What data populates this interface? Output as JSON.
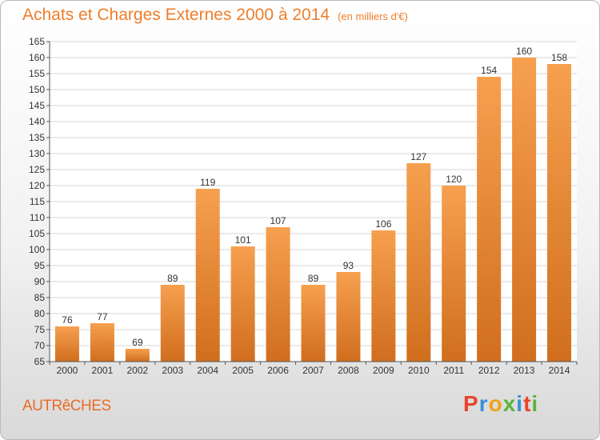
{
  "title": "Achats et Charges Externes 2000 à 2014",
  "unit": "(en milliers d'€)",
  "commune": "AUTRêCHES",
  "logo": {
    "letters": [
      "P",
      "r",
      "o",
      "x",
      "i",
      "t",
      "i"
    ],
    "colors": [
      "#e8442b",
      "#3a8fd8",
      "#f2a21c",
      "#5ab43c",
      "#3a8fd8",
      "#e8442b",
      "#5ab43c"
    ]
  },
  "colors": {
    "accent": "#ef7e2a",
    "bar_top": "#f6a04f",
    "bar_bottom": "#d06e1e",
    "grid": "#d7d7d7"
  },
  "chart_data": {
    "type": "bar",
    "categories": [
      "2000",
      "2001",
      "2002",
      "2003",
      "2004",
      "2005",
      "2006",
      "2007",
      "2008",
      "2009",
      "2010",
      "2011",
      "2012",
      "2013",
      "2014"
    ],
    "values": [
      76,
      77,
      69,
      89,
      119,
      101,
      107,
      89,
      93,
      106,
      127,
      120,
      154,
      160,
      158
    ],
    "ylim": [
      65,
      165
    ],
    "yticks": [
      65,
      70,
      75,
      80,
      85,
      90,
      95,
      100,
      105,
      110,
      115,
      120,
      125,
      130,
      135,
      140,
      145,
      150,
      155,
      160,
      165
    ],
    "grid": true,
    "xlabel": "",
    "ylabel": ""
  }
}
